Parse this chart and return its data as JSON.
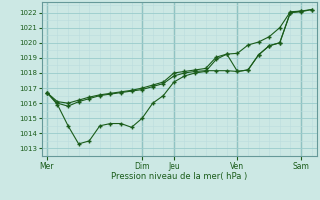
{
  "xlabel": "Pression niveau de la mer( hPa )",
  "ylim": [
    1012.5,
    1022.7
  ],
  "yticks": [
    1013,
    1014,
    1015,
    1016,
    1017,
    1018,
    1019,
    1020,
    1021,
    1022
  ],
  "xlim": [
    -0.5,
    25.5
  ],
  "bg_color": "#cce8e4",
  "grid_major_color": "#99cccc",
  "grid_minor_color": "#bbdddd",
  "line_color": "#1a5c1a",
  "day_labels": [
    "Mer",
    "Dim",
    "Jeu",
    "Ven",
    "Sam"
  ],
  "day_positions": [
    0,
    9,
    12,
    18,
    24
  ],
  "s1_x": [
    0,
    1,
    2,
    3,
    4,
    5,
    6,
    7,
    8,
    9,
    10,
    11,
    12,
    13,
    14,
    15,
    16,
    17,
    18,
    19,
    20,
    21,
    22,
    23,
    24,
    25
  ],
  "s1_y": [
    1016.7,
    1016.0,
    1015.8,
    1016.1,
    1016.3,
    1016.5,
    1016.6,
    1016.7,
    1016.8,
    1016.9,
    1017.1,
    1017.3,
    1017.8,
    1018.0,
    1018.1,
    1018.15,
    1018.15,
    1018.15,
    1018.1,
    1018.2,
    1019.2,
    1019.8,
    1020.0,
    1022.0,
    1022.05,
    1022.2
  ],
  "s2_x": [
    0,
    1,
    2,
    3,
    4,
    5,
    6,
    7,
    8,
    9,
    10,
    11,
    12,
    13,
    14,
    15,
    16,
    17,
    18,
    19,
    20,
    21,
    22,
    23,
    24
  ],
  "s2_y": [
    1016.7,
    1015.9,
    1014.5,
    1013.3,
    1013.5,
    1014.5,
    1014.65,
    1014.65,
    1014.4,
    1015.0,
    1016.0,
    1016.5,
    1017.4,
    1017.8,
    1018.0,
    1018.1,
    1018.9,
    1019.25,
    1018.1,
    1018.2,
    1019.2,
    1019.8,
    1020.0,
    1022.0,
    1022.1
  ],
  "s3_x": [
    0,
    1,
    2,
    3,
    4,
    5,
    6,
    7,
    8,
    9,
    10,
    11,
    12,
    13,
    14,
    15,
    16,
    17,
    18,
    19,
    20,
    21,
    22,
    23,
    24,
    25
  ],
  "s3_y": [
    1016.7,
    1016.1,
    1016.0,
    1016.2,
    1016.4,
    1016.55,
    1016.65,
    1016.75,
    1016.85,
    1017.0,
    1017.2,
    1017.4,
    1018.0,
    1018.1,
    1018.2,
    1018.3,
    1019.05,
    1019.25,
    1019.3,
    1019.85,
    1020.05,
    1020.4,
    1021.0,
    1022.05,
    1022.1,
    1022.2
  ]
}
